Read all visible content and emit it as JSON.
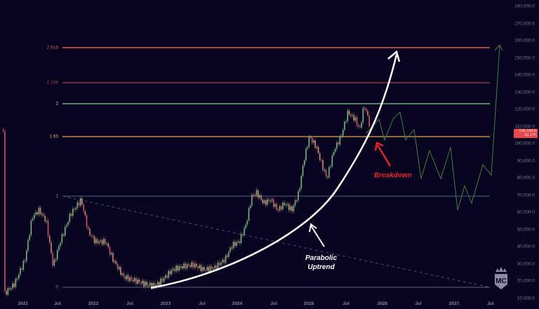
{
  "chart_data": {
    "type": "candlestick",
    "title": "",
    "symbol_price": "106,240.0",
    "price_countdown": "3d 17h",
    "y_axis": {
      "ticks": [
        "180,000.0",
        "170,000.0",
        "160,000.0",
        "150,000.0",
        "140,000.0",
        "130,000.0",
        "120,000.0",
        "110,000.0",
        "100,000.0",
        "90,000.0",
        "80,000.0",
        "70,000.0",
        "60,000.0",
        "50,000.0",
        "40,000.0",
        "30,000.0",
        "20,000.0",
        "10,000.0"
      ],
      "range": [
        10000,
        180000
      ]
    },
    "x_axis": {
      "ticks": [
        "2021",
        "Jul",
        "2022",
        "Jul",
        "2023",
        "Jul",
        "2024",
        "Jul",
        "2025",
        "Jul",
        "2026",
        "Jul",
        "2027",
        "Jul"
      ]
    },
    "fib_levels": [
      {
        "label": "2.618",
        "price": 156000,
        "color": "#e05a5a"
      },
      {
        "label": "2.236",
        "price": 135000,
        "color": "#a8445a"
      },
      {
        "label": "2",
        "price": 122000,
        "color": "#7fc99a"
      },
      {
        "label": "1.65",
        "price": 104000,
        "color": "#e8a050"
      },
      {
        "label": "1",
        "price": 69000,
        "color": "#6b6a8a"
      },
      {
        "label": "0",
        "price": 16000,
        "color": "#6b6a8a"
      }
    ],
    "price_path_approx": [
      {
        "t": "2020-10",
        "p": 11000
      },
      {
        "t": "2021-01",
        "p": 33000
      },
      {
        "t": "2021-04",
        "p": 59000
      },
      {
        "t": "2021-07",
        "p": 33000
      },
      {
        "t": "2021-11",
        "p": 69000
      },
      {
        "t": "2022-01",
        "p": 38000
      },
      {
        "t": "2022-06",
        "p": 20000
      },
      {
        "t": "2022-11",
        "p": 16000
      },
      {
        "t": "2023-04",
        "p": 29000
      },
      {
        "t": "2023-10",
        "p": 27000
      },
      {
        "t": "2024-03",
        "p": 71000
      },
      {
        "t": "2024-09",
        "p": 54000
      },
      {
        "t": "2024-12",
        "p": 106000
      },
      {
        "t": "2025-04",
        "p": 76000
      },
      {
        "t": "2025-07",
        "p": 120000
      },
      {
        "t": "2025-10",
        "p": 124000
      },
      {
        "t": "2025-11",
        "p": 106240
      }
    ],
    "projection_path_approx": [
      {
        "t": "2025-11",
        "p": 106000
      },
      {
        "t": "2025-12",
        "p": 118000
      },
      {
        "t": "2026-01",
        "p": 100000
      },
      {
        "t": "2026-02",
        "p": 108000
      },
      {
        "t": "2026-03",
        "p": 88000
      },
      {
        "t": "2026-05",
        "p": 98000
      },
      {
        "t": "2026-06",
        "p": 80000
      },
      {
        "t": "2026-07",
        "p": 96000
      },
      {
        "t": "2026-09",
        "p": 65000
      },
      {
        "t": "2026-10",
        "p": 73000
      },
      {
        "t": "2026-11",
        "p": 66000
      },
      {
        "t": "2027-01",
        "p": 85000
      },
      {
        "t": "2027-03",
        "p": 78000
      },
      {
        "t": "2027-07",
        "p": 157000
      }
    ],
    "annotations": [
      {
        "text_line1": "Parabolic",
        "text_line2": "Uptrend",
        "color": "#ffffff"
      },
      {
        "text": "Breakdown",
        "color": "#e02a2a"
      }
    ],
    "grid": false,
    "background": "#06041f"
  },
  "annotations": {
    "parabolic_line1": "Parabolic",
    "parabolic_line2": "Uptrend",
    "breakdown": "Breakdown"
  },
  "price_badge": {
    "price": "106,240.0",
    "countdown": "3d 17h"
  },
  "logo_text": "MC"
}
